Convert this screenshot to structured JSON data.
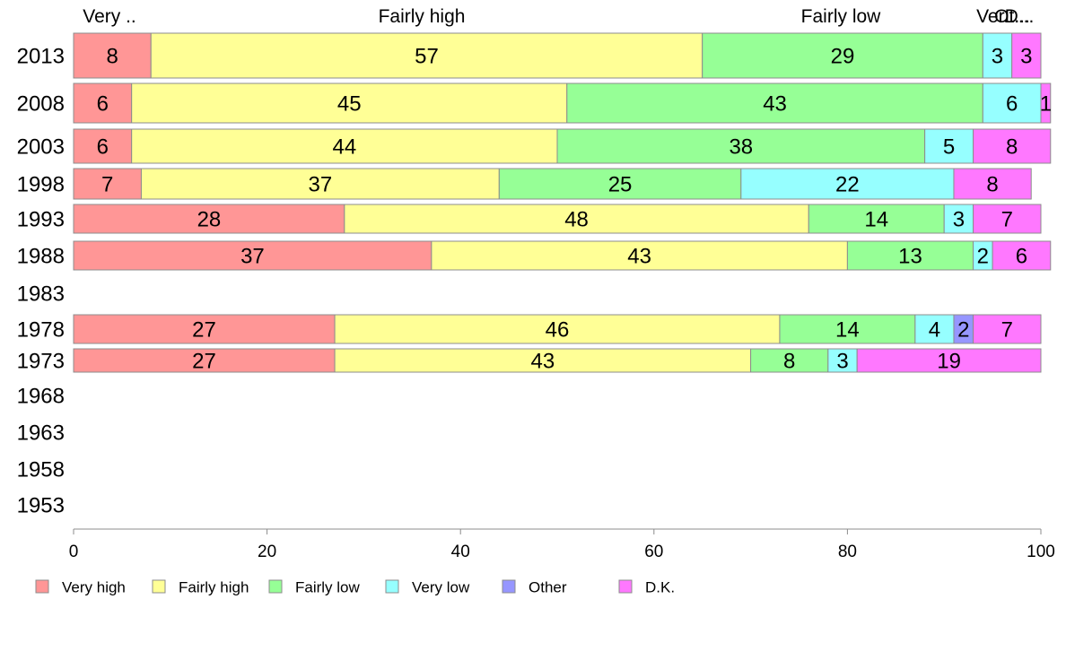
{
  "chart_data": {
    "type": "bar",
    "orientation": "horizontal",
    "stacked": true,
    "categories": [
      "2013",
      "2008",
      "2003",
      "1998",
      "1993",
      "1988",
      "1983",
      "1978",
      "1973",
      "1968",
      "1963",
      "1958",
      "1953"
    ],
    "series": [
      {
        "name": "Very high",
        "color": "#ff9696",
        "values": [
          8,
          6,
          6,
          7,
          28,
          37,
          null,
          27,
          27,
          null,
          null,
          null,
          null
        ]
      },
      {
        "name": "Fairly high",
        "color": "#ffff96",
        "values": [
          57,
          45,
          44,
          37,
          48,
          43,
          null,
          46,
          43,
          null,
          null,
          null,
          null
        ]
      },
      {
        "name": "Fairly low",
        "color": "#96ff96",
        "values": [
          29,
          43,
          38,
          25,
          14,
          13,
          null,
          14,
          8,
          null,
          null,
          null,
          null
        ]
      },
      {
        "name": "Very low",
        "color": "#96ffff",
        "values": [
          3,
          6,
          5,
          22,
          3,
          2,
          null,
          4,
          3,
          null,
          null,
          null,
          null
        ]
      },
      {
        "name": "Other",
        "color": "#9696ff",
        "values": [
          0,
          0,
          0,
          0,
          0,
          0,
          null,
          2,
          0,
          null,
          null,
          null,
          null
        ]
      },
      {
        "name": "D.K.",
        "color": "#ff78ff",
        "values": [
          3,
          1,
          8,
          8,
          7,
          6,
          null,
          7,
          19,
          null,
          null,
          null,
          null
        ]
      }
    ],
    "top_labels": [
      "Very ..",
      "Fairly high",
      "Fairly low",
      "Ver...",
      "Ot...",
      "D..."
    ],
    "xlim": [
      0,
      100
    ],
    "xticks": [
      "0",
      "20",
      "40",
      "60",
      "80",
      "100"
    ],
    "grid": false,
    "legend_position": "bottom"
  }
}
